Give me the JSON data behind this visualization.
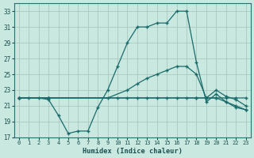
{
  "xlabel": "Humidex (Indice chaleur)",
  "bg_color": "#c8e8e0",
  "grid_color": "#a8c8c0",
  "line_color": "#1a6b6b",
  "xlim": [
    -0.5,
    23.5
  ],
  "ylim": [
    17,
    34
  ],
  "yticks": [
    17,
    19,
    21,
    23,
    25,
    27,
    29,
    31,
    33
  ],
  "xticks": [
    0,
    1,
    2,
    3,
    4,
    5,
    6,
    7,
    8,
    9,
    10,
    11,
    12,
    13,
    14,
    15,
    16,
    17,
    18,
    19,
    20,
    21,
    22,
    23
  ],
  "line1_x": [
    0,
    1,
    2,
    3,
    4,
    5,
    6,
    7,
    8,
    9,
    10,
    11,
    12,
    13,
    14,
    15,
    16,
    17,
    18,
    19,
    20,
    21,
    22,
    23
  ],
  "line1_y": [
    22.0,
    22.0,
    22.0,
    21.8,
    19.8,
    17.5,
    17.8,
    17.8,
    20.8,
    23.0,
    26.0,
    29.0,
    31.0,
    31.0,
    31.5,
    31.5,
    33.0,
    33.0,
    26.5,
    21.5,
    22.5,
    21.5,
    20.8,
    20.5
  ],
  "line2_x": [
    0,
    3,
    9,
    11,
    12,
    13,
    14,
    15,
    16,
    17,
    18,
    19,
    20,
    21,
    22,
    23
  ],
  "line2_y": [
    22.0,
    22.0,
    22.0,
    23.0,
    23.8,
    24.5,
    25.0,
    25.5,
    26.0,
    26.0,
    25.0,
    22.0,
    22.0,
    22.0,
    22.0,
    22.0
  ],
  "line3_x": [
    0,
    3,
    18,
    19,
    20,
    21,
    22,
    23
  ],
  "line3_y": [
    22.0,
    22.0,
    22.0,
    22.0,
    23.0,
    22.2,
    21.8,
    21.0
  ],
  "line4_x": [
    0,
    3,
    10,
    11,
    12,
    13,
    14,
    15,
    16,
    17,
    18,
    19,
    20,
    21,
    22,
    23
  ],
  "line4_y": [
    22.0,
    22.0,
    22.0,
    22.0,
    22.0,
    22.0,
    22.0,
    22.0,
    22.0,
    22.0,
    22.0,
    22.0,
    22.0,
    21.5,
    21.0,
    20.5
  ]
}
